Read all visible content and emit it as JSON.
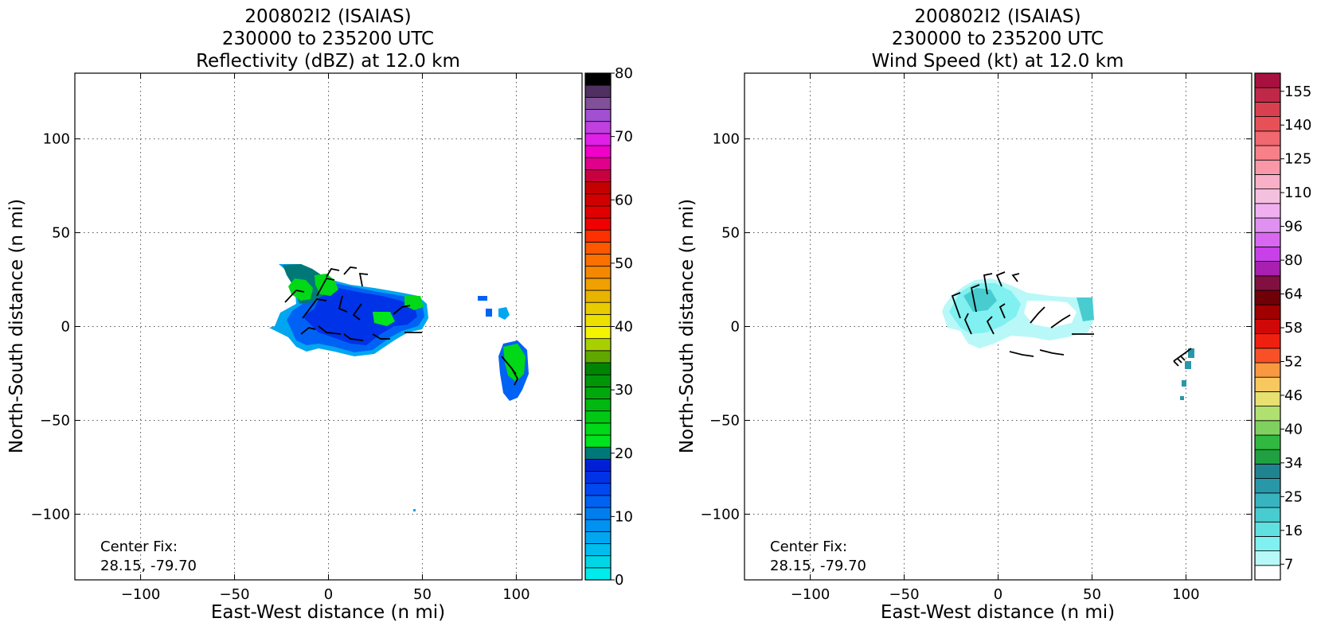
{
  "chart_data": [
    {
      "type": "heatmap",
      "title_lines": [
        "200802I2 (ISAIAS)",
        "230000 to 235200 UTC",
        "Reflectivity (dBZ) at 12.0 km"
      ],
      "xlabel": "East-West distance (n mi)",
      "ylabel": "North-South distance (n mi)",
      "xlim": [
        -135,
        135
      ],
      "ylim": [
        -135,
        135
      ],
      "xticks": [
        -100,
        -50,
        0,
        50,
        100
      ],
      "yticks": [
        -100,
        -50,
        0,
        50,
        100
      ],
      "xtick_labels": [
        "−100",
        "−50",
        "0",
        "50",
        "100"
      ],
      "ytick_labels": [
        "−100",
        "−50",
        "0",
        "50",
        "100"
      ],
      "grid": true,
      "annotation_lines": [
        "Center Fix:",
        "28.15, -79.70"
      ],
      "colorbar": {
        "min": 0,
        "max": 80,
        "ticks": [
          0,
          10,
          20,
          30,
          40,
          50,
          60,
          70,
          80
        ],
        "tick_labels": [
          "0",
          "10",
          "20",
          "30",
          "40",
          "50",
          "60",
          "70",
          "80"
        ],
        "colors": [
          "#00ECEC",
          "#00D6E6",
          "#00BDEE",
          "#00A6F0",
          "#0092F2",
          "#007EF0",
          "#0062F4",
          "#0048F0",
          "#0032E8",
          "#0020D8",
          "#007878",
          "#00E41E",
          "#00D818",
          "#00C814",
          "#00B810",
          "#00A80C",
          "#009608",
          "#008404",
          "#60A800",
          "#A8D000",
          "#F4F400",
          "#ECE000",
          "#E8CC00",
          "#E8B400",
          "#F0A000",
          "#F48800",
          "#FC7000",
          "#FC5800",
          "#FC3000",
          "#F00000",
          "#E00000",
          "#D00000",
          "#C40000",
          "#C80040",
          "#E0008C",
          "#F000C8",
          "#E020E8",
          "#C040E0",
          "#A050D0",
          "#805098",
          "#503060",
          "#000000"
        ]
      },
      "barb_color": "#000000",
      "features": [
        {
          "name": "main-echo-mass",
          "colors": [
            "#00A6F0",
            "#0062F4",
            "#0032E8",
            "#007878",
            "#00D818"
          ]
        },
        {
          "name": "eastern-band",
          "colors": [
            "#0062F4",
            "#0032E8",
            "#00D818"
          ]
        }
      ]
    },
    {
      "type": "heatmap",
      "title_lines": [
        "200802I2 (ISAIAS)",
        "230000 to 235200 UTC",
        "Wind Speed (kt) at 12.0 km"
      ],
      "xlabel": "East-West distance (n mi)",
      "ylabel": "North-South distance (n mi)",
      "xlim": [
        -135,
        135
      ],
      "ylim": [
        -135,
        135
      ],
      "xticks": [
        -100,
        -50,
        0,
        50,
        100
      ],
      "yticks": [
        -100,
        -50,
        0,
        50,
        100
      ],
      "xtick_labels": [
        "−100",
        "−50",
        "0",
        "50",
        "100"
      ],
      "ytick_labels": [
        "−100",
        "−50",
        "0",
        "50",
        "100"
      ],
      "grid": true,
      "annotation_lines": [
        "Center Fix:",
        "28.15, -79.70"
      ],
      "colorbar": {
        "ticks": [
          "7",
          "16",
          "25",
          "34",
          "40",
          "46",
          "52",
          "58",
          "64",
          "80",
          "96",
          "110",
          "125",
          "140",
          "155"
        ],
        "colors": [
          "#FFFFFF",
          "#B8F8F8",
          "#80F0F0",
          "#60E0E0",
          "#48CCD0",
          "#38B4C0",
          "#2898A8",
          "#208490",
          "#20A040",
          "#30B840",
          "#80D060",
          "#B0E070",
          "#E8E070",
          "#F8C860",
          "#F89840",
          "#F85028",
          "#F02010",
          "#D00808",
          "#A00000",
          "#700008",
          "#801040",
          "#A820B0",
          "#C840E8",
          "#D868F0",
          "#E090F0",
          "#F0B0F0",
          "#F4C0E0",
          "#F8B0C8",
          "#F898A8",
          "#F88088",
          "#F06870",
          "#E85058",
          "#D84050",
          "#C02848",
          "#A81040"
        ]
      },
      "barb_color": "#000000",
      "features": [
        {
          "name": "main-wind-mass",
          "colors": [
            "#B8F8F8",
            "#80F0F0",
            "#60E0E0",
            "#48CCD0",
            "#2898A8"
          ]
        },
        {
          "name": "eastern-cells",
          "colors": [
            "#2898A8",
            "#208490"
          ]
        }
      ]
    }
  ]
}
